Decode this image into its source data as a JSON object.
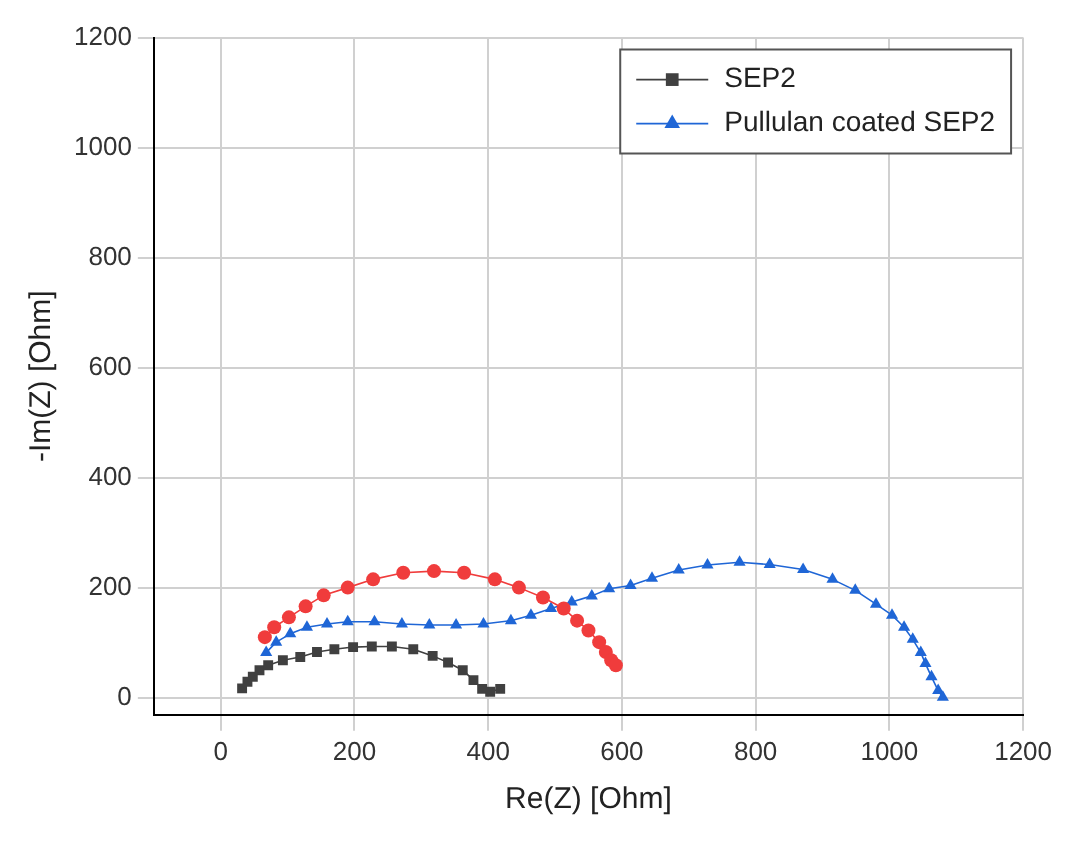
{
  "chart_data": {
    "type": "line",
    "xlabel": "Re(Z) [Ohm]",
    "ylabel": "-Im(Z) [Ohm]",
    "xlim": [
      -100,
      1200
    ],
    "ylim": [
      -30,
      1200
    ],
    "xticks": [
      0,
      200,
      400,
      600,
      800,
      1000,
      1200
    ],
    "yticks": [
      0,
      200,
      400,
      600,
      800,
      1000,
      1200
    ],
    "grid": true,
    "legend": "top right",
    "series": [
      {
        "name": "SEP2",
        "color": "#404040",
        "marker": "square",
        "x": [
          32,
          40,
          48,
          58,
          71,
          93,
          119,
          144,
          170,
          198,
          226,
          256,
          288,
          317,
          340,
          362,
          378,
          391,
          403,
          418
        ],
        "values": [
          18,
          30,
          39,
          51,
          60,
          69,
          75,
          84,
          89,
          93,
          94,
          94,
          89,
          77,
          65,
          51,
          33,
          17,
          12,
          17
        ]
      },
      {
        "color": "#f03c3c",
        "marker": "circle",
        "x": [
          66,
          80,
          102,
          127,
          154,
          190,
          228,
          273,
          319,
          364,
          410,
          446,
          482,
          513,
          533,
          550,
          566,
          576,
          584,
          591
        ],
        "values": [
          111,
          129,
          147,
          167,
          187,
          201,
          216,
          228,
          231,
          228,
          216,
          201,
          183,
          163,
          141,
          123,
          102,
          84,
          69,
          60
        ]
      },
      {
        "name": "Pullulan coated SEP2",
        "color": "#1f66d6",
        "marker": "triangle",
        "x": [
          68,
          83,
          104,
          129,
          159,
          190,
          230,
          271,
          312,
          352,
          393,
          434,
          464,
          494,
          525,
          555,
          581,
          613,
          645,
          685,
          728,
          776,
          821,
          871,
          915,
          949,
          980,
          1004,
          1022,
          1035,
          1047,
          1054,
          1063,
          1073,
          1080
        ],
        "values": [
          83,
          102,
          117,
          129,
          135,
          139,
          139,
          135,
          133,
          133,
          135,
          141,
          151,
          163,
          175,
          186,
          199,
          205,
          218,
          233,
          242,
          247,
          243,
          234,
          216,
          196,
          171,
          151,
          129,
          107,
          83,
          63,
          39,
          14,
          2
        ]
      }
    ]
  }
}
